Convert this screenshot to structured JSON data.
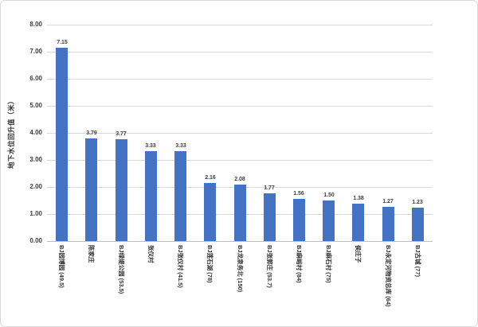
{
  "chart_data": {
    "type": "bar",
    "title": "",
    "xlabel": "",
    "ylabel": "地下水位回升值（米）",
    "ylim": [
      0,
      8
    ],
    "ytick_step": 1,
    "yticks": [
      "0.00",
      "1.00",
      "2.00",
      "3.00",
      "4.00",
      "5.00",
      "6.00",
      "7.00",
      "8.00"
    ],
    "grid": "horizontal",
    "legend": "none",
    "categories": [
      "BJ园博园 (49.5)",
      "陈家庄",
      "BJ绿堤公园 (53.5)",
      "张仪村",
      "BJ张仪村 (41.5)",
      "BJ莲石湖 (78)",
      "BJ龙泉务北 (150)",
      "BJ张郭庄 (53.7)",
      "BJ麻峪村 (84)",
      "BJ麻石村 (75)",
      "侯庄子",
      "BJ永定河物资总库 (64)",
      "BJ古城 (77)"
    ],
    "values": [
      7.15,
      3.79,
      3.77,
      3.33,
      3.33,
      2.16,
      2.08,
      1.77,
      1.56,
      1.5,
      1.38,
      1.27,
      1.23
    ],
    "value_labels": [
      "7.15",
      "3.79",
      "3.77",
      "3.33",
      "3.33",
      "2.16",
      "2.08",
      "1.77",
      "1.56",
      "1.50",
      "1.38",
      "1.27",
      "1.23"
    ],
    "colors": {
      "bar": "#4472C4",
      "gridline": "#d9d9d9",
      "axis_line": "#bfbfbf",
      "tick_label": "#404040",
      "value_label": "#404040",
      "category_label": "#333333"
    }
  }
}
